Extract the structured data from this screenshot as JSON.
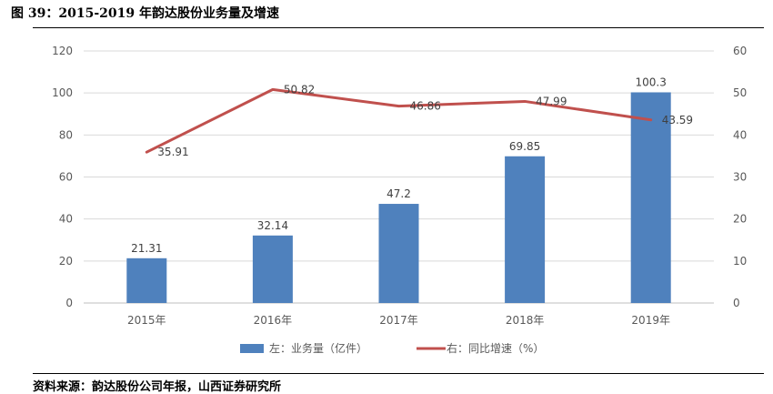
{
  "figure": {
    "title": "图 39：2015-2019 年韵达股份业务量及增速",
    "source": "资料来源：韵达股份公司年报，山西证券研究所"
  },
  "colors": {
    "bar": "#4f81bd",
    "line": "#c0504d",
    "grid": "#d9d9d9",
    "axis_text": "#595959"
  },
  "chart_data": {
    "type": "bar",
    "categories": [
      "2015年",
      "2016年",
      "2017年",
      "2018年",
      "2019年"
    ],
    "series": [
      {
        "name": "左：业务量（亿件）",
        "type": "bar",
        "axis": "left",
        "values": [
          21.31,
          32.14,
          47.2,
          69.85,
          100.3
        ],
        "labels": [
          "21.31",
          "32.14",
          "47.2",
          "69.85",
          "100.3"
        ]
      },
      {
        "name": "右：同比增速（%）",
        "type": "line",
        "axis": "right",
        "values": [
          35.91,
          50.82,
          46.86,
          47.99,
          43.59
        ],
        "labels": [
          "35.91",
          "50.82",
          "46.86",
          "47.99",
          "43.59"
        ]
      }
    ],
    "y_left": {
      "min": 0,
      "max": 120,
      "ticks": [
        "0",
        "20",
        "40",
        "60",
        "80",
        "100",
        "120"
      ]
    },
    "y_right": {
      "min": 0,
      "max": 60,
      "ticks": [
        "0",
        "10",
        "20",
        "30",
        "40",
        "50",
        "60"
      ]
    },
    "grid": true,
    "legend": "bottom"
  }
}
